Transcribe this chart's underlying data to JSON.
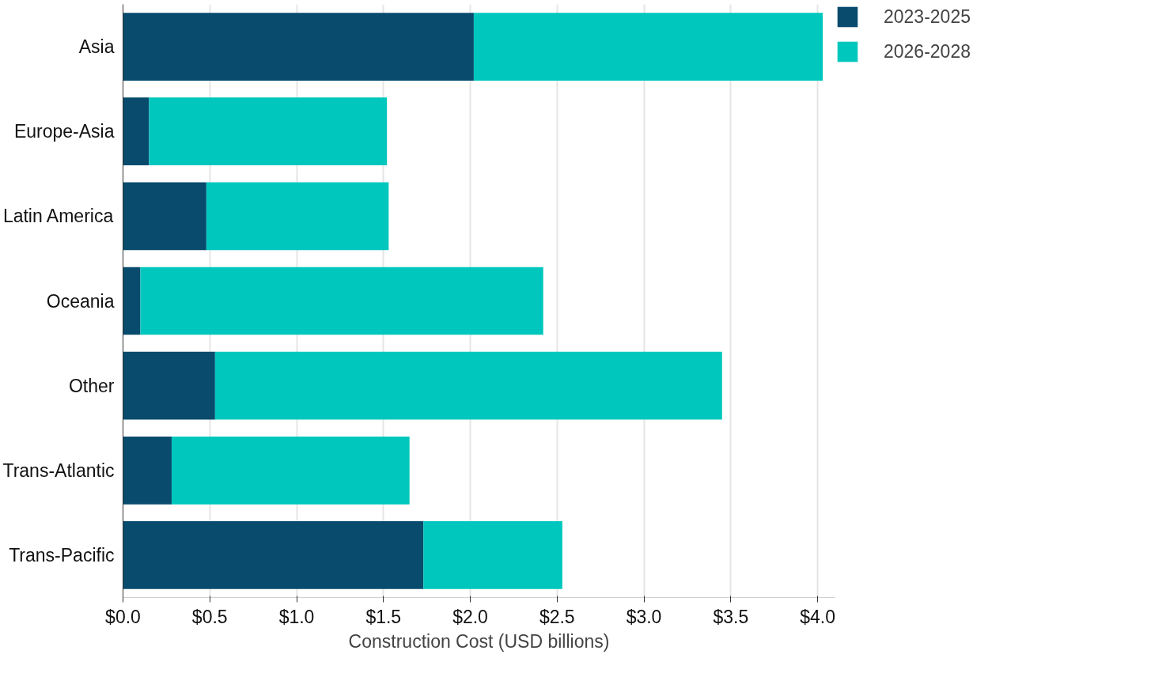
{
  "chart_data": {
    "type": "bar",
    "orientation": "horizontal",
    "stacked": true,
    "xlabel": "Construction Cost (USD billions)",
    "categories": [
      "Asia",
      "Europe-Asia",
      "Latin America",
      "Oceania",
      "Other",
      "Trans-Atlantic",
      "Trans-Pacific"
    ],
    "series": [
      {
        "name": "2023-2025",
        "color": "#084b6d",
        "values": [
          2.02,
          0.15,
          0.48,
          0.1,
          0.53,
          0.28,
          1.73
        ]
      },
      {
        "name": "2026-2028",
        "color": "#00c7bd",
        "values": [
          2.01,
          1.37,
          1.05,
          2.32,
          2.92,
          1.37,
          0.8
        ]
      }
    ],
    "xlim": [
      0,
      4.1
    ],
    "xticks": [
      {
        "value": 0,
        "label": "$0.0"
      },
      {
        "value": 0.5,
        "label": "$0.5"
      },
      {
        "value": 1,
        "label": "$1.0"
      },
      {
        "value": 1.5,
        "label": "$1.5"
      },
      {
        "value": 2,
        "label": "$2.0"
      },
      {
        "value": 2.5,
        "label": "$2.5"
      },
      {
        "value": 3,
        "label": "$3.0"
      },
      {
        "value": 3.5,
        "label": "$3.5"
      },
      {
        "value": 4,
        "label": "$4.0"
      }
    ],
    "grid": "x",
    "legend": "top right"
  }
}
